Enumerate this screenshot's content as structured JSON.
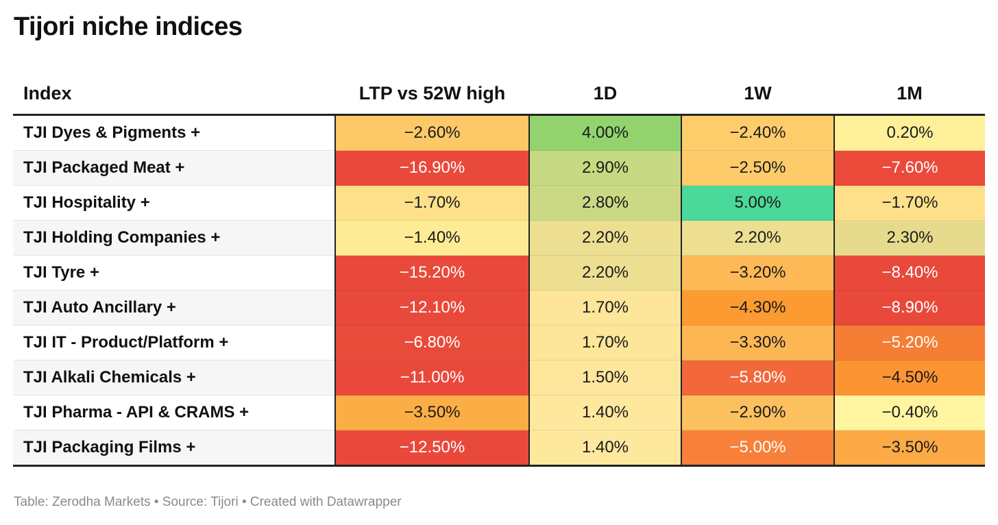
{
  "title": "Tijori niche indices",
  "footer": "Table: Zerodha Markets • Source: Tijori • Created with Datawrapper",
  "chart_data": {
    "type": "table",
    "title": "Tijori niche indices",
    "columns": [
      "Index",
      "LTP vs 52W high",
      "1D",
      "1W",
      "1M"
    ],
    "rows": [
      {
        "name": "TJI Dyes & Pigments +",
        "values": [
          "−2.60%",
          "4.00%",
          "−2.40%",
          "0.20%"
        ],
        "colors": [
          "#fdc968",
          "#92d36e",
          "#fdcd6c",
          "#fef099"
        ],
        "text": [
          "dark",
          "dark",
          "dark",
          "dark"
        ]
      },
      {
        "name": "TJI Packaged Meat +",
        "values": [
          "−16.90%",
          "2.90%",
          "−2.50%",
          "−7.60%"
        ],
        "colors": [
          "#e9493b",
          "#c7d982",
          "#fdcb6a",
          "#eb4a3a"
        ],
        "text": [
          "light",
          "dark",
          "dark",
          "light"
        ]
      },
      {
        "name": "TJI Hospitality +",
        "values": [
          "−1.70%",
          "2.80%",
          "5.00%",
          "−1.70%"
        ],
        "colors": [
          "#fee08a",
          "#cbd984",
          "#4bd89b",
          "#fee08a"
        ],
        "text": [
          "dark",
          "dark",
          "dark",
          "dark"
        ]
      },
      {
        "name": "TJI Holding Companies +",
        "values": [
          "−1.40%",
          "2.20%",
          "2.20%",
          "2.30%"
        ],
        "colors": [
          "#feeb96",
          "#ecdf92",
          "#ecdf92",
          "#e6db8d"
        ],
        "text": [
          "dark",
          "dark",
          "dark",
          "dark"
        ]
      },
      {
        "name": "TJI Tyre +",
        "values": [
          "−15.20%",
          "2.20%",
          "−3.20%",
          "−8.40%"
        ],
        "colors": [
          "#e9493b",
          "#ecdf92",
          "#fdb955",
          "#e9493b"
        ],
        "text": [
          "light",
          "dark",
          "dark",
          "light"
        ]
      },
      {
        "name": "TJI Auto Ancillary +",
        "values": [
          "−12.10%",
          "1.70%",
          "−4.30%",
          "−8.90%"
        ],
        "colors": [
          "#e9493b",
          "#fde59a",
          "#fb9b31",
          "#e9493b"
        ],
        "text": [
          "light",
          "dark",
          "dark",
          "light"
        ]
      },
      {
        "name": "TJI IT - Product/Platform +",
        "values": [
          "−6.80%",
          "1.70%",
          "−3.30%",
          "−5.20%"
        ],
        "colors": [
          "#e94b3a",
          "#fde59a",
          "#fdb654",
          "#f57e34"
        ],
        "text": [
          "light",
          "dark",
          "dark",
          "light"
        ]
      },
      {
        "name": "TJI Alkali Chemicals +",
        "values": [
          "−11.00%",
          "1.50%",
          "−5.80%",
          "−4.50%"
        ],
        "colors": [
          "#e9493b",
          "#fee79d",
          "#f2683a",
          "#fb9432"
        ],
        "text": [
          "light",
          "dark",
          "light",
          "dark"
        ]
      },
      {
        "name": "TJI Pharma - API & CRAMS +",
        "values": [
          "−3.50%",
          "1.40%",
          "−2.90%",
          "−0.40%"
        ],
        "colors": [
          "#fcae46",
          "#fee89e",
          "#fdc05e",
          "#fff4a0"
        ],
        "text": [
          "dark",
          "dark",
          "dark",
          "dark"
        ]
      },
      {
        "name": "TJI Packaging Films +",
        "values": [
          "−12.50%",
          "1.40%",
          "−5.00%",
          "−3.50%"
        ],
        "colors": [
          "#e9493b",
          "#fee89e",
          "#f7803a",
          "#fcaa45"
        ],
        "text": [
          "light",
          "dark",
          "light",
          "dark"
        ]
      }
    ]
  }
}
